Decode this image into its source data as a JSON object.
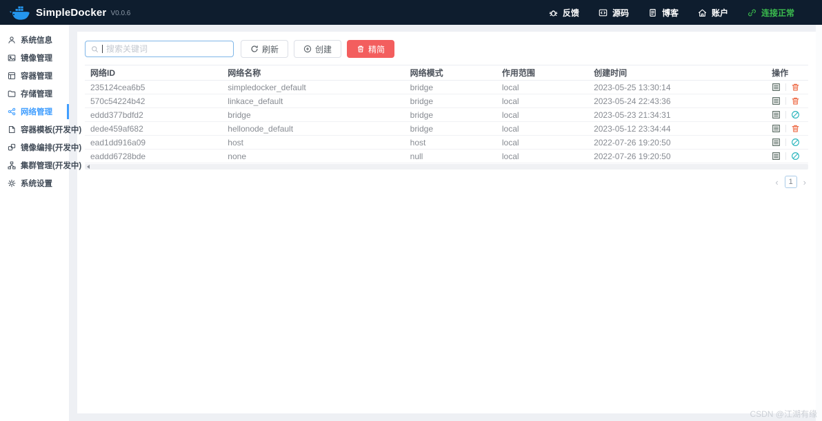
{
  "navbar": {
    "brand": "SimpleDocker",
    "version": "V0.0.6",
    "items": [
      {
        "name": "feedback",
        "icon": "bug-icon",
        "label": "反馈"
      },
      {
        "name": "source-code",
        "icon": "code-icon",
        "label": "源码"
      },
      {
        "name": "blog",
        "icon": "blog-icon",
        "label": "博客"
      },
      {
        "name": "account",
        "icon": "home-icon",
        "label": "账户"
      },
      {
        "name": "connection-status",
        "icon": "link-icon",
        "label": "连接正常",
        "status": true
      }
    ]
  },
  "sidebar": {
    "items": [
      {
        "name": "system-info",
        "icon": "user-icon",
        "label": "系统信息",
        "active": false
      },
      {
        "name": "image-manage",
        "icon": "image-icon",
        "label": "镜像管理",
        "active": false
      },
      {
        "name": "container-manage",
        "icon": "container-icon",
        "label": "容器管理",
        "active": false
      },
      {
        "name": "storage-manage",
        "icon": "folder-icon",
        "label": "存储管理",
        "active": false
      },
      {
        "name": "network-manage",
        "icon": "network-icon",
        "label": "网络管理",
        "active": true
      },
      {
        "name": "container-template",
        "icon": "template-icon",
        "label": "容器模板(开发中)",
        "active": false
      },
      {
        "name": "image-compose",
        "icon": "compose-icon",
        "label": "镜像编排(开发中)",
        "active": false
      },
      {
        "name": "cluster-manage",
        "icon": "cluster-icon",
        "label": "集群管理(开发中)",
        "active": false
      },
      {
        "name": "system-settings",
        "icon": "gear-icon",
        "label": "系统设置",
        "active": false
      }
    ]
  },
  "toolbar": {
    "search_placeholder": "搜索关键词",
    "search_value": "",
    "refresh_label": "刷新",
    "create_label": "创建",
    "prune_label": "精简"
  },
  "table": {
    "columns": [
      "网络ID",
      "网络名称",
      "网络模式",
      "作用范围",
      "创建时间",
      "操作"
    ],
    "rows": [
      {
        "id": "235124cea6b5",
        "name": "simpledocker_default",
        "mode": "bridge",
        "scope": "local",
        "created": "2023-05-25 13:30:14",
        "deletable": true
      },
      {
        "id": "570c54224b42",
        "name": "linkace_default",
        "mode": "bridge",
        "scope": "local",
        "created": "2023-05-24 22:43:36",
        "deletable": true
      },
      {
        "id": "eddd377bdfd2",
        "name": "bridge",
        "mode": "bridge",
        "scope": "local",
        "created": "2023-05-23 21:34:31",
        "deletable": false
      },
      {
        "id": "dede459af682",
        "name": "hellonode_default",
        "mode": "bridge",
        "scope": "local",
        "created": "2023-05-12 23:34:44",
        "deletable": true
      },
      {
        "id": "ead1dd916a09",
        "name": "host",
        "mode": "host",
        "scope": "local",
        "created": "2022-07-26 19:20:50",
        "deletable": false
      },
      {
        "id": "eaddd6728bde",
        "name": "none",
        "mode": "null",
        "scope": "local",
        "created": "2022-07-26 19:20:50",
        "deletable": false
      }
    ]
  },
  "pagination": {
    "prev": "‹",
    "current_page": "1",
    "next": "›"
  },
  "watermark": "CSDN @江湖有缘",
  "colors": {
    "navbar_bg": "#0e1d2e",
    "accent_blue": "#409eff",
    "success_green": "#3bbd4e",
    "danger_red": "#f35e5e",
    "trash_orange": "#ed6a45",
    "ban_teal": "#2ab5bd",
    "docker_blue": "#2496ed"
  }
}
